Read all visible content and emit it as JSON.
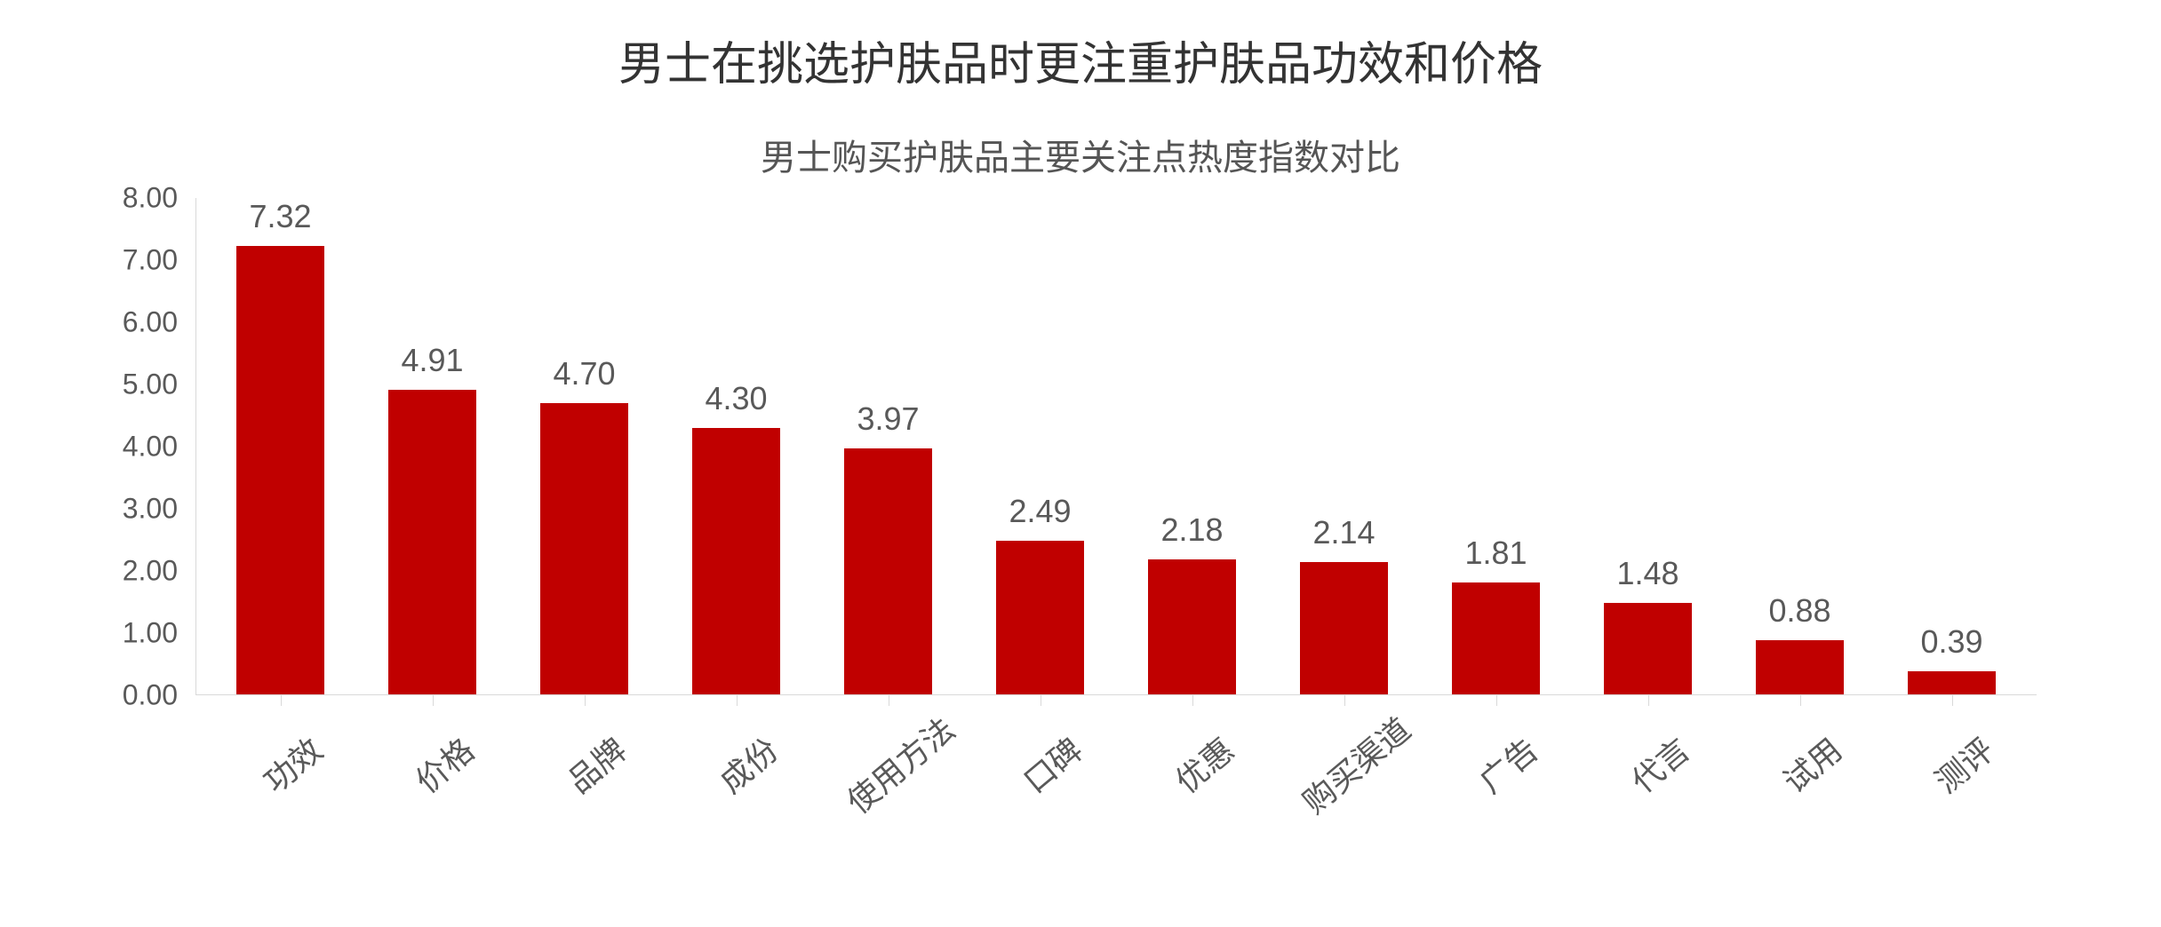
{
  "chart": {
    "type": "bar",
    "title": "男士在挑选护肤品时更注重护肤品功效和价格",
    "title_fontsize": 52,
    "title_color": "#333333",
    "subtitle": "男士购买护肤品主要关注点热度指数对比",
    "subtitle_fontsize": 40,
    "subtitle_color": "#555555",
    "categories": [
      "功效",
      "价格",
      "品牌",
      "成份",
      "使用方法",
      "口碑",
      "优惠",
      "购买渠道",
      "广告",
      "代言",
      "试用",
      "测评"
    ],
    "values": [
      7.32,
      4.91,
      4.7,
      4.3,
      3.97,
      2.49,
      2.18,
      2.14,
      1.81,
      1.48,
      0.88,
      0.39
    ],
    "value_labels": [
      "7.32",
      "4.91",
      "4.70",
      "4.30",
      "3.97",
      "2.49",
      "2.18",
      "2.14",
      "1.81",
      "1.48",
      "0.88",
      "0.39"
    ],
    "bar_color": "#c00000",
    "background_color": "#ffffff",
    "grid_color": "#d9d9d9",
    "axis_color": "#d9d9d9",
    "tick_label_color": "#595959",
    "ylim": [
      0,
      8
    ],
    "ytick_step": 1,
    "yticks": [
      "0.00",
      "1.00",
      "2.00",
      "3.00",
      "4.00",
      "5.00",
      "6.00",
      "7.00",
      "8.00"
    ],
    "tick_fontsize": 32,
    "xlabel_fontsize": 36,
    "value_label_fontsize": 36,
    "bar_width_ratio": 0.58,
    "xlabel_rotation_deg": -40
  }
}
